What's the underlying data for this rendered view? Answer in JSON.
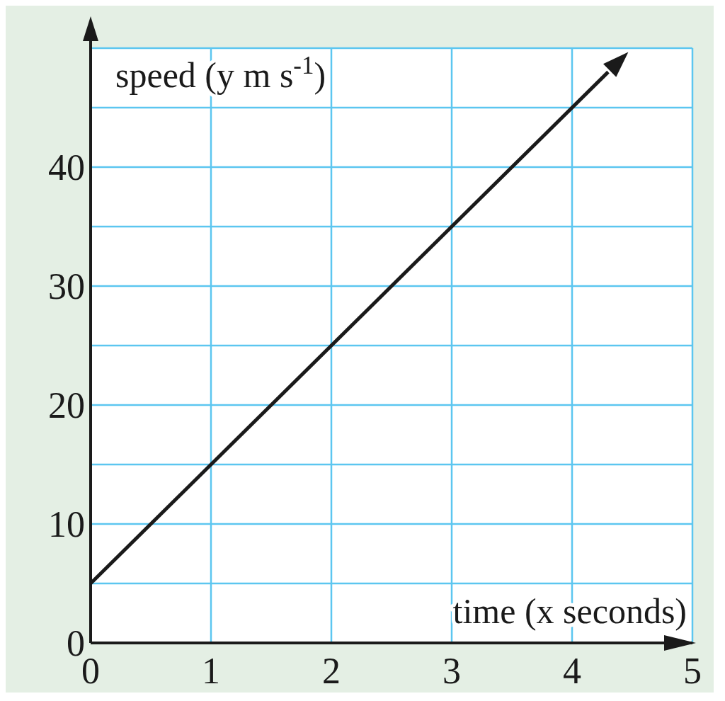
{
  "chart_data": {
    "type": "line",
    "xlabel": "time (x seconds)",
    "ylabel": "speed (y m s$^{-1}$)",
    "x": [
      0,
      4.3
    ],
    "series": [
      {
        "color": "#1a1a1a",
        "values": [
          5,
          48
        ]
      }
    ],
    "xlim": [
      0,
      5
    ],
    "xticks": [
      0,
      1,
      2,
      3,
      4,
      5
    ],
    "ylim": [
      0,
      50
    ],
    "yticks": [
      0,
      {
        "value": 5,
        "label": null
      },
      10,
      {
        "value": 15,
        "label": null
      },
      20,
      {
        "value": 25,
        "label": null
      },
      30,
      {
        "value": 35,
        "label": null
      },
      40,
      {
        "value": 45,
        "label": null
      },
      {
        "value": 50,
        "label": null
      }
    ],
    "grid": true,
    "line_style": "solid"
  }
}
